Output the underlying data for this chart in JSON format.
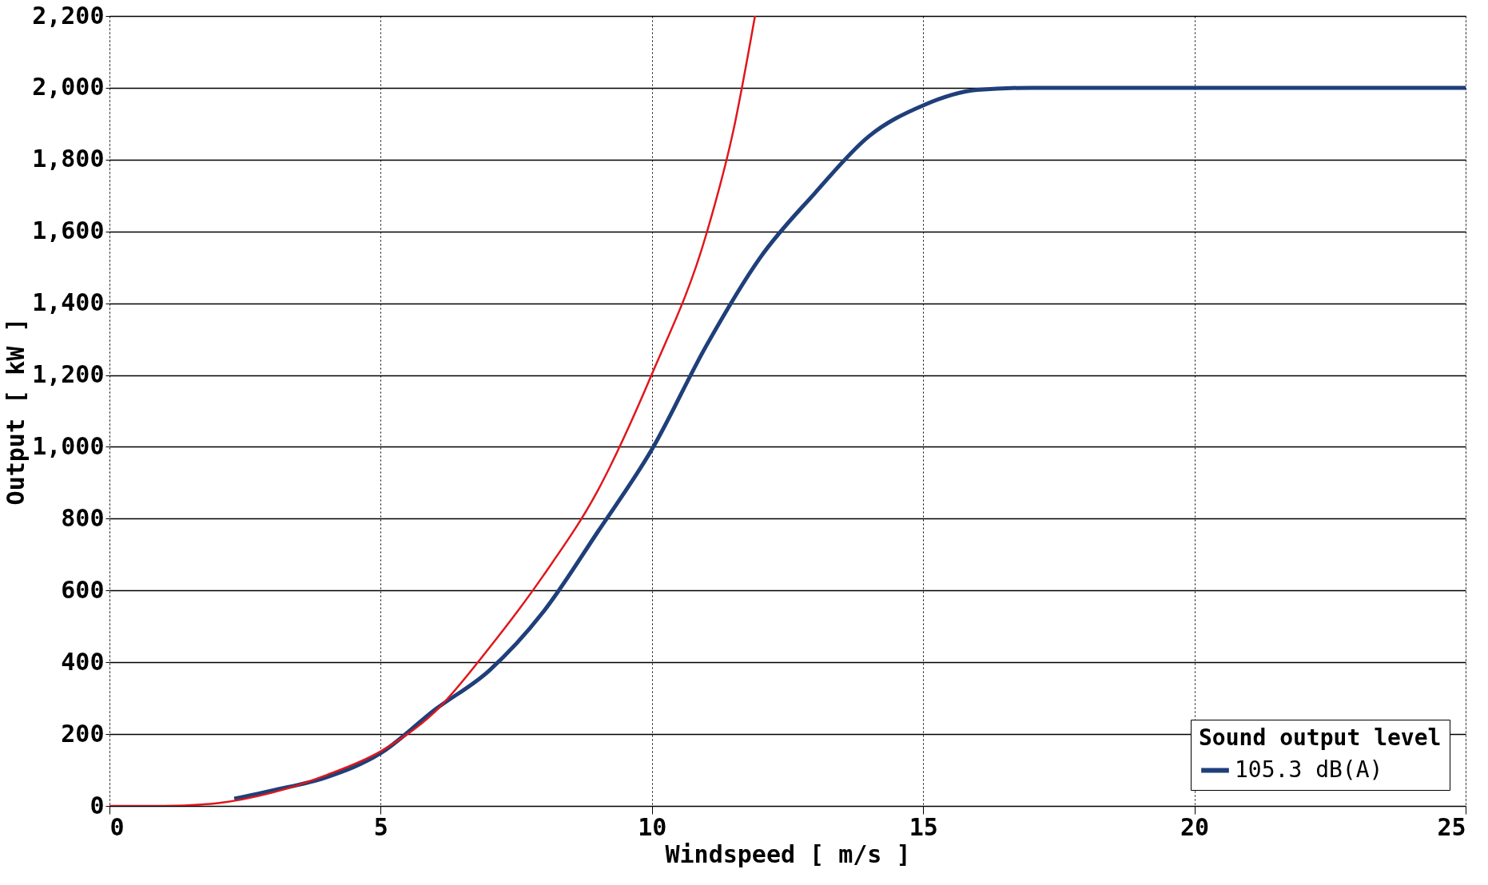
{
  "chart_data": {
    "type": "line",
    "xlabel": "Windspeed [ m/s ]",
    "ylabel": "Output  [ kW ]",
    "legend_title": "Sound output level",
    "xlim": [
      0,
      25
    ],
    "xticks": [
      0,
      5,
      10,
      15,
      20,
      25
    ],
    "ylim": [
      0,
      2200
    ],
    "yticks": [
      0,
      200,
      400,
      600,
      800,
      {
        "value": 1000,
        "label": "1,000"
      },
      {
        "value": 1200,
        "label": "1,200"
      },
      {
        "value": 1400,
        "label": "1,400"
      },
      {
        "value": 1600,
        "label": "1,600"
      },
      {
        "value": 1800,
        "label": "1,800"
      },
      {
        "value": 2000,
        "label": "2,000"
      },
      {
        "value": 2200,
        "label": "2,200"
      }
    ],
    "grid": true,
    "legend": "bottom right",
    "marker": "none",
    "line_style": "solid",
    "series": [
      {
        "name": "105.3 dB(A)",
        "color": "#1f3f7a",
        "x": [
          2.3,
          3,
          4,
          5,
          6,
          7,
          8,
          9,
          10,
          11,
          12,
          13,
          14,
          15,
          16,
          17,
          25
        ],
        "values": [
          20,
          43,
          80,
          147,
          268,
          377,
          541,
          763,
          993,
          1281,
          1528,
          1706,
          1865,
          1951,
          1994,
          2000,
          2000
        ]
      },
      {
        "color": "#e0161b",
        "x": [
          0,
          1,
          2,
          3,
          4,
          5,
          6,
          7,
          8,
          9,
          10,
          11,
          11.5,
          11.9
        ],
        "values": [
          0,
          0,
          8,
          37,
          86,
          152,
          262,
          440,
          642,
          878,
          1203,
          1591,
          1880,
          2200
        ]
      }
    ]
  }
}
